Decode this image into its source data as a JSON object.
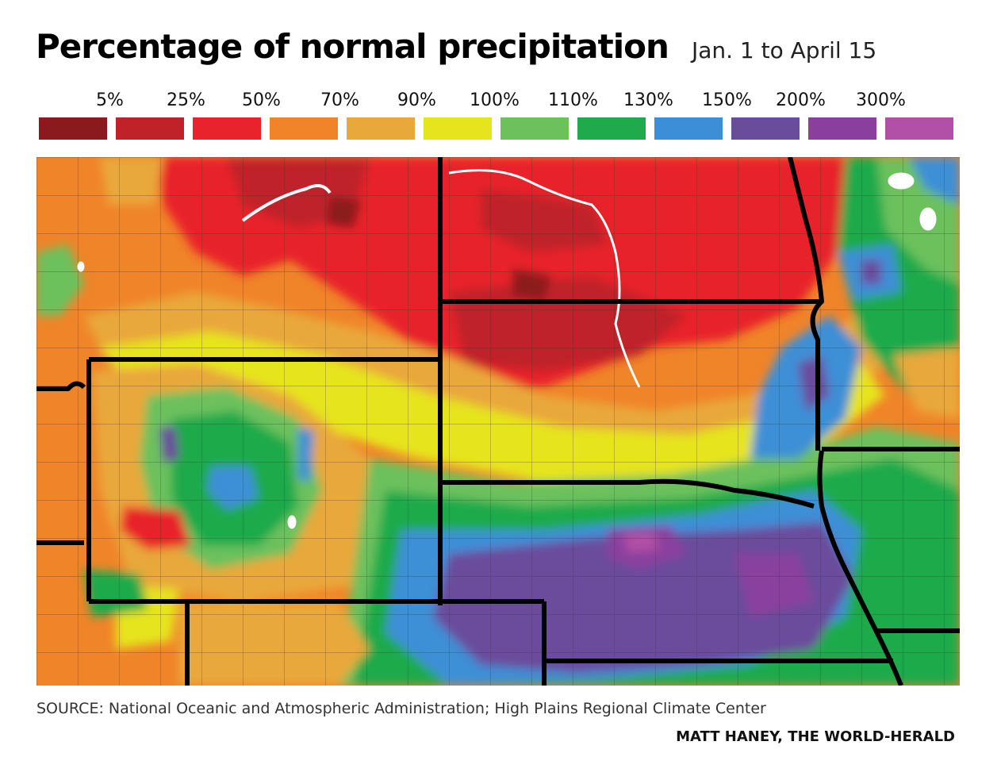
{
  "header": {
    "title": "Percentage of normal precipitation",
    "subtitle": "Jan. 1 to April 15"
  },
  "legend": [
    {
      "label": "5%",
      "color": "#8b1a1e"
    },
    {
      "label": "25%",
      "color": "#bf2229"
    },
    {
      "label": "50%",
      "color": "#e8232b"
    },
    {
      "label": "70%",
      "color": "#f08429"
    },
    {
      "label": "90%",
      "color": "#e9a83a"
    },
    {
      "label": "100%",
      "color": "#e6e41d"
    },
    {
      "label": "110%",
      "color": "#6cc15d"
    },
    {
      "label": "130%",
      "color": "#1faa4b"
    },
    {
      "label": "150%",
      "color": "#3c8fd6"
    },
    {
      "label": "200%",
      "color": "#6a4c9c"
    },
    {
      "label": "300%",
      "color": "#8a3f9e"
    },
    {
      "label": "",
      "color": "#b24fa6"
    }
  ],
  "footer": {
    "source": "SOURCE: National Oceanic and Atmospheric Administration; High Plains Regional Climate Center",
    "credit": "MATT HANEY, THE WORLD-HERALD"
  }
}
